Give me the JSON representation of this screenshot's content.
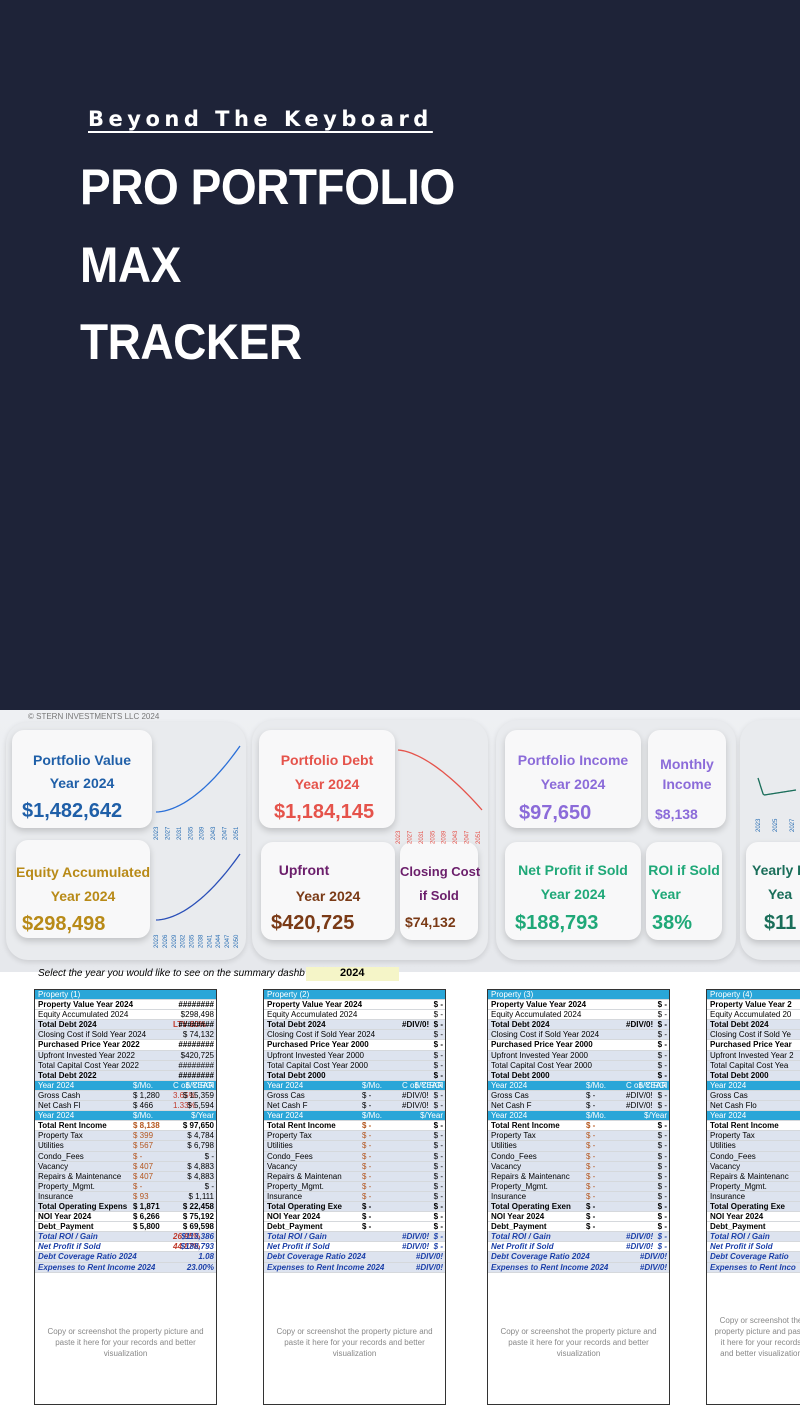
{
  "hero": {
    "brand": "Beyond The Keyboard",
    "title_lines": [
      "PRO PORTFOLIO",
      "MAX",
      "TRACKER"
    ]
  },
  "dashboard": {
    "copyright": "© STERN INVESTMENTS LLC 2024",
    "cards": {
      "portfolio_value": {
        "title": "Portfolio Value",
        "year": "Year 2024",
        "value": "$1,482,642"
      },
      "equity": {
        "title": "Equity Accumulated",
        "year": "Year 2024",
        "value": "$298,498"
      },
      "portfolio_debt": {
        "title": "Portfolio Debt",
        "year": "Year 2024",
        "value": "$1,184,145"
      },
      "upfront": {
        "title": "Upfront",
        "year": "Year 2024",
        "value": "$420,725"
      },
      "closing_cost": {
        "title": "Closing Cost",
        "title2": "if Sold",
        "value": "$74,132"
      },
      "portfolio_income": {
        "title": "Portfolio Income",
        "year": "Year 2024",
        "value": "$97,650"
      },
      "monthly_income": {
        "title": "Monthly",
        "title2": "Income",
        "value": "$8,138"
      },
      "net_profit": {
        "title": "Net Profit if Sold",
        "year": "Year 2024",
        "value": "$188,793"
      },
      "roi_sold": {
        "title": "ROI if Sold",
        "year": "Year",
        "value": "38%"
      },
      "yearly": {
        "title": "Yearly P",
        "year": "Yea",
        "value": "$11"
      }
    },
    "spark_years_a": [
      "2023",
      "2027",
      "2031",
      "2035",
      "2039",
      "2043",
      "2047",
      "2051"
    ],
    "spark_years_b": [
      "2023",
      "2026",
      "2029",
      "2032",
      "2035",
      "2038",
      "2041",
      "2044",
      "2047",
      "2050"
    ],
    "spark_years_c": [
      "2023",
      "2025",
      "2027"
    ],
    "select_text": "Select the year you would like to see on the summary dashb",
    "selected_year": "2024"
  },
  "properties": [
    {
      "name": "Property (1)",
      "rows": [
        [
          "Property Value Year 2024",
          "",
          "",
          "########"
        ],
        [
          "Equity Accumulated 2024",
          "",
          "",
          "$298,498"
        ],
        [
          "Total Debt 2024",
          "",
          "LTV 80%",
          "########"
        ],
        [
          "Closing Cost if Sold Year 2024",
          "",
          "",
          "$ 74,132"
        ],
        [
          "Purchased Price Year 2022",
          "",
          "",
          "########"
        ],
        [
          "Upfront Invested Year 2022",
          "",
          "",
          "$420,725"
        ],
        [
          "Total Capital Cost Year 2022",
          "",
          "",
          "########"
        ],
        [
          "Total Debt 2022",
          "",
          "",
          "########"
        ],
        [
          "Year 2024",
          "$/Mo.",
          "C on C ROI",
          "$/YEAR"
        ],
        [
          "Gross Cash",
          "$ 1,280",
          "3.65%",
          "$ 15,359"
        ],
        [
          "Net Cash Fl",
          "$ 466",
          "1.33%",
          "$ 5,594"
        ],
        [
          "Year 2024",
          "$/Mo.",
          "",
          "$/Year"
        ],
        [
          "Total Rent Income",
          "$ 8,138",
          "",
          "$ 97,650"
        ],
        [
          "Property Tax",
          "$ 399",
          "",
          "$ 4,784"
        ],
        [
          "Utilities",
          "$ 567",
          "",
          "$ 6,798"
        ],
        [
          "Condo_Fees",
          "$ -",
          "",
          "$ -"
        ],
        [
          "Vacancy",
          "$ 407",
          "",
          "$ 4,883"
        ],
        [
          "Repairs & Maintenance",
          "$ 407",
          "",
          "$ 4,883"
        ],
        [
          "Property_Mgmt.",
          "$ -",
          "",
          "$ -"
        ],
        [
          "Insurance",
          "$ 93",
          "",
          "$ 1,111"
        ],
        [
          "Total Operating Expens",
          "$ 1,871",
          "",
          "$ 22,458"
        ],
        [
          "NOI Year 2024",
          "$ 6,266",
          "",
          "$ 75,192"
        ],
        [
          "Debt_Payment",
          "$ 5,800",
          "",
          "$ 69,598"
        ],
        [
          "Total ROI / Gain",
          "",
          "26.95%",
          "$113,386"
        ],
        [
          "Net Profit if Sold",
          "",
          "44.87%",
          "$188,793"
        ],
        [
          "Debt Coverage Ratio 2024",
          "",
          "",
          "1.08"
        ],
        [
          "Expenses to Rent Income 2024",
          "",
          "",
          "23.00%"
        ]
      ],
      "note": "Copy or screenshot the property picture and paste it here for your records and better visualization"
    },
    {
      "name": "Property (2)",
      "rows": [
        [
          "Property Value Year 2024",
          "",
          "",
          "$ -"
        ],
        [
          "Equity Accumulated 2024",
          "",
          "",
          "$ -"
        ],
        [
          "Total Debt 2024",
          "",
          "#DIV/0!",
          "$ -"
        ],
        [
          "Closing Cost if Sold Year 2024",
          "",
          "",
          "$ -"
        ],
        [
          "Purchased Price Year 2000",
          "",
          "",
          "$ -"
        ],
        [
          "Upfront Invested Year 2000",
          "",
          "",
          "$ -"
        ],
        [
          "Total Capital Cost Year 2000",
          "",
          "",
          "$ -"
        ],
        [
          "Total Debt 2000",
          "",
          "",
          "$ -"
        ],
        [
          "Year 2024",
          "$/Mo.",
          "C on C ROI",
          "$/YEAR"
        ],
        [
          "Gross Cas",
          "$ -",
          "#DIV/0!",
          "$ -"
        ],
        [
          "Net Cash F",
          "$ -",
          "#DIV/0!",
          "$ -"
        ],
        [
          "Year 2024",
          "$/Mo.",
          "",
          "$/Year"
        ],
        [
          "Total Rent Income",
          "$ -",
          "",
          "$ -"
        ],
        [
          "Property Tax",
          "$ -",
          "",
          "$ -"
        ],
        [
          "Utilities",
          "$ -",
          "",
          "$ -"
        ],
        [
          "Condo_Fees",
          "$ -",
          "",
          "$ -"
        ],
        [
          "Vacancy",
          "$ -",
          "",
          "$ -"
        ],
        [
          "Repairs & Maintenan",
          "$ -",
          "",
          "$ -"
        ],
        [
          "Property_Mgmt.",
          "$ -",
          "",
          "$ -"
        ],
        [
          "Insurance",
          "$ -",
          "",
          "$ -"
        ],
        [
          "Total Operating Exe",
          "$ -",
          "",
          "$ -"
        ],
        [
          "NOI Year 2024",
          "$ -",
          "",
          "$ -"
        ],
        [
          "Debt_Payment",
          "$ -",
          "",
          "$ -"
        ],
        [
          "Total ROI / Gain",
          "",
          "#DIV/0!",
          "$ -"
        ],
        [
          "Net Profit if Sold",
          "",
          "#DIV/0!",
          "$ -"
        ],
        [
          "Debt Coverage Ratio 2024",
          "",
          "",
          "#DIV/0!"
        ],
        [
          "Expenses to Rent Income 2024",
          "",
          "",
          "#DIV/0!"
        ]
      ],
      "note": "Copy or screenshot the property picture and paste it here for your records and better visualization"
    },
    {
      "name": "Property (3)",
      "rows": [
        [
          "Property Value Year 2024",
          "",
          "",
          "$ -"
        ],
        [
          "Equity Accumulated 2024",
          "",
          "",
          "$ -"
        ],
        [
          "Total Debt 2024",
          "",
          "#DIV/0!",
          "$ -"
        ],
        [
          "Closing Cost if Sold Year 2024",
          "",
          "",
          "$ -"
        ],
        [
          "Purchased Price Year 2000",
          "",
          "",
          "$ -"
        ],
        [
          "Upfront Invested Year 2000",
          "",
          "",
          "$ -"
        ],
        [
          "Total Capital Cost Year 2000",
          "",
          "",
          "$ -"
        ],
        [
          "Total Debt 2000",
          "",
          "",
          "$ -"
        ],
        [
          "Year 2024",
          "$/Mo.",
          "C on C ROI",
          "$/YEAR"
        ],
        [
          "Gross Cas",
          "$ -",
          "#DIV/0!",
          "$ -"
        ],
        [
          "Net Cash F",
          "$ -",
          "#DIV/0!",
          "$ -"
        ],
        [
          "Year 2024",
          "$/Mo.",
          "",
          "$/Year"
        ],
        [
          "Total Rent Income",
          "$ -",
          "",
          "$ -"
        ],
        [
          "Property Tax",
          "$ -",
          "",
          "$ -"
        ],
        [
          "Utilities",
          "$ -",
          "",
          "$ -"
        ],
        [
          "Condo_Fees",
          "$ -",
          "",
          "$ -"
        ],
        [
          "Vacancy",
          "$ -",
          "",
          "$ -"
        ],
        [
          "Repairs & Maintenanc",
          "$ -",
          "",
          "$ -"
        ],
        [
          "Property_Mgmt.",
          "$ -",
          "",
          "$ -"
        ],
        [
          "Insurance",
          "$ -",
          "",
          "$ -"
        ],
        [
          "Total Operating Exen",
          "$ -",
          "",
          "$ -"
        ],
        [
          "NOI Year 2024",
          "$ -",
          "",
          "$ -"
        ],
        [
          "Debt_Payment",
          "$ -",
          "",
          "$ -"
        ],
        [
          "Total ROI / Gain",
          "",
          "#DIV/0!",
          "$ -"
        ],
        [
          "Net Profit if Sold",
          "",
          "#DIV/0!",
          "$ -"
        ],
        [
          "Debt Coverage Ratio 2024",
          "",
          "",
          "#DIV/0!"
        ],
        [
          "Expenses to Rent Income 2024",
          "",
          "",
          "#DIV/0!"
        ]
      ],
      "note": "Copy or screenshot the property picture and paste it here for your records and better visualization"
    },
    {
      "name": "Property (4)",
      "rows": [
        [
          "Property Value Year 2",
          "",
          "",
          ""
        ],
        [
          "Equity Accumulated 20",
          "",
          "",
          ""
        ],
        [
          "Total Debt 2024",
          "",
          "",
          ""
        ],
        [
          "Closing Cost if Sold Ye",
          "",
          "",
          ""
        ],
        [
          "Purchased Price Year",
          "",
          "",
          ""
        ],
        [
          "Upfront Invested Year 2",
          "",
          "",
          ""
        ],
        [
          "Total Capital Cost Yea",
          "",
          "",
          ""
        ],
        [
          "Total Debt 2000",
          "",
          "",
          ""
        ],
        [
          "Year 2024",
          "$/Mo.",
          "",
          ""
        ],
        [
          "Gross Cas",
          "$ -",
          "",
          ""
        ],
        [
          "Net Cash Flo",
          "$ -",
          "",
          ""
        ],
        [
          "Year 2024",
          "",
          "",
          ""
        ],
        [
          "Total Rent Income",
          "",
          "",
          ""
        ],
        [
          "Property Tax",
          "",
          "",
          ""
        ],
        [
          "Utilities",
          "",
          "",
          ""
        ],
        [
          "Condo_Fees",
          "",
          "",
          ""
        ],
        [
          "Vacancy",
          "",
          "",
          ""
        ],
        [
          "Repairs & Maintenanc",
          "",
          "",
          ""
        ],
        [
          "Property_Mgmt.",
          "",
          "",
          ""
        ],
        [
          "Insurance",
          "",
          "",
          ""
        ],
        [
          "Total Operating Exe",
          "",
          "",
          ""
        ],
        [
          "NOI Year 2024",
          "",
          "",
          ""
        ],
        [
          "Debt_Payment",
          "",
          "",
          ""
        ],
        [
          "Total ROI / Gain",
          "",
          "",
          ""
        ],
        [
          "Net Profit if Sold",
          "",
          "",
          ""
        ],
        [
          "Debt Coverage Ratio",
          "",
          "",
          ""
        ],
        [
          "Expenses to Rent Inco",
          "",
          "",
          ""
        ]
      ],
      "note": "Copy or screenshot the property picture and paste it here for your records and better visualization"
    }
  ],
  "colors": {
    "background": "#1e2338",
    "value_blue": "#1f5fa8",
    "debt_red": "#e5534b",
    "equity_gold": "#b88a17",
    "upfront_brown": "#7a3a16",
    "income_purple": "#8b6bd9",
    "profit_green": "#1fa878",
    "header_cyan": "#2aa6d8"
  }
}
